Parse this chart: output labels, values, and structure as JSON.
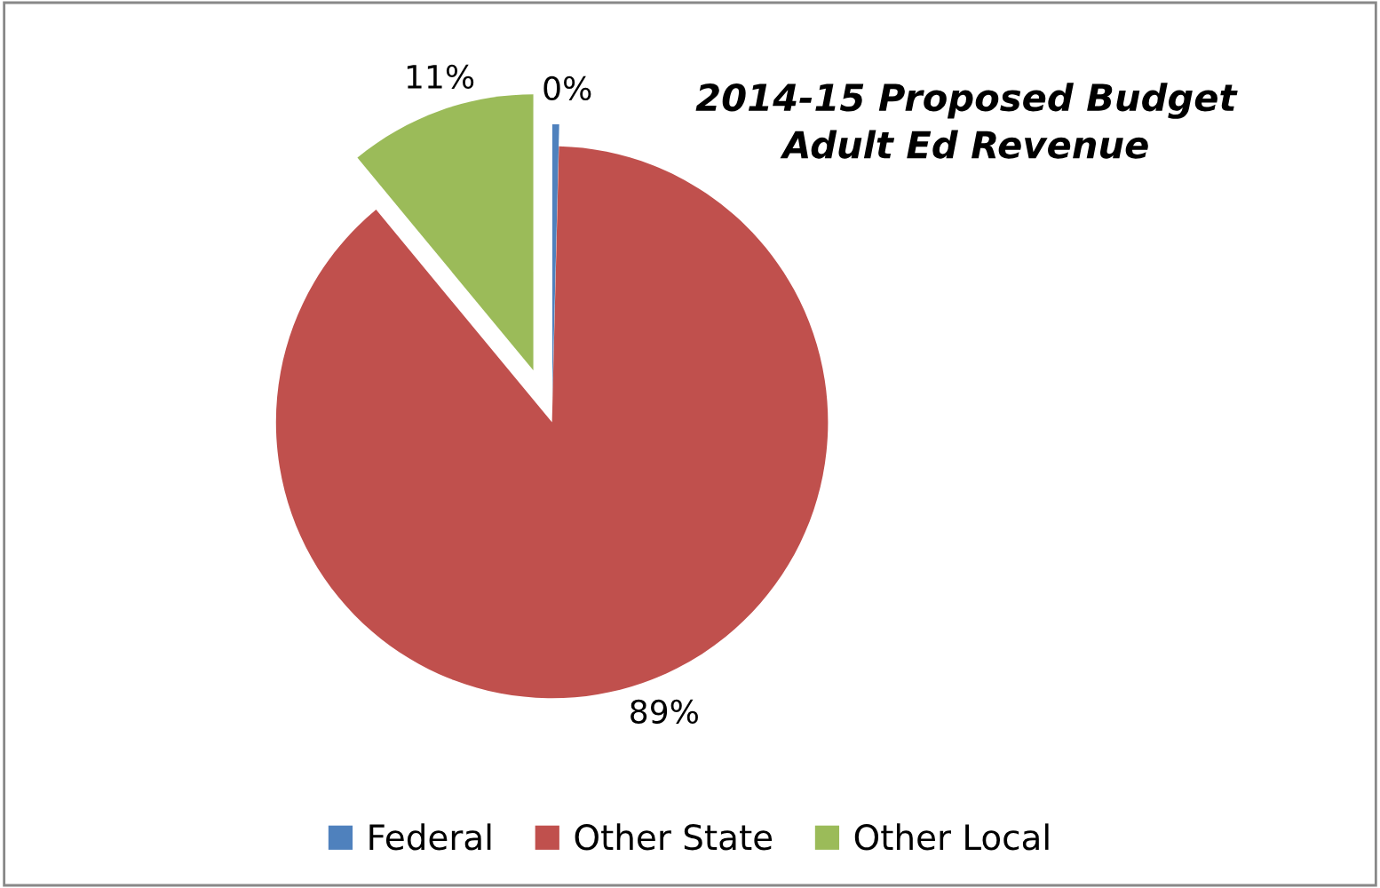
{
  "chart_data": {
    "type": "pie",
    "title": "2014-15 Proposed Budget\nAdult Ed Revenue",
    "categories": [
      "Federal",
      "Other State",
      "Other Local"
    ],
    "values": [
      0.4,
      88.6,
      11
    ],
    "value_labels": [
      "0%",
      "89%",
      "11%"
    ],
    "colors": [
      "#4f81bd",
      "#c0504d",
      "#9bbb59"
    ],
    "legend": "bottom"
  }
}
